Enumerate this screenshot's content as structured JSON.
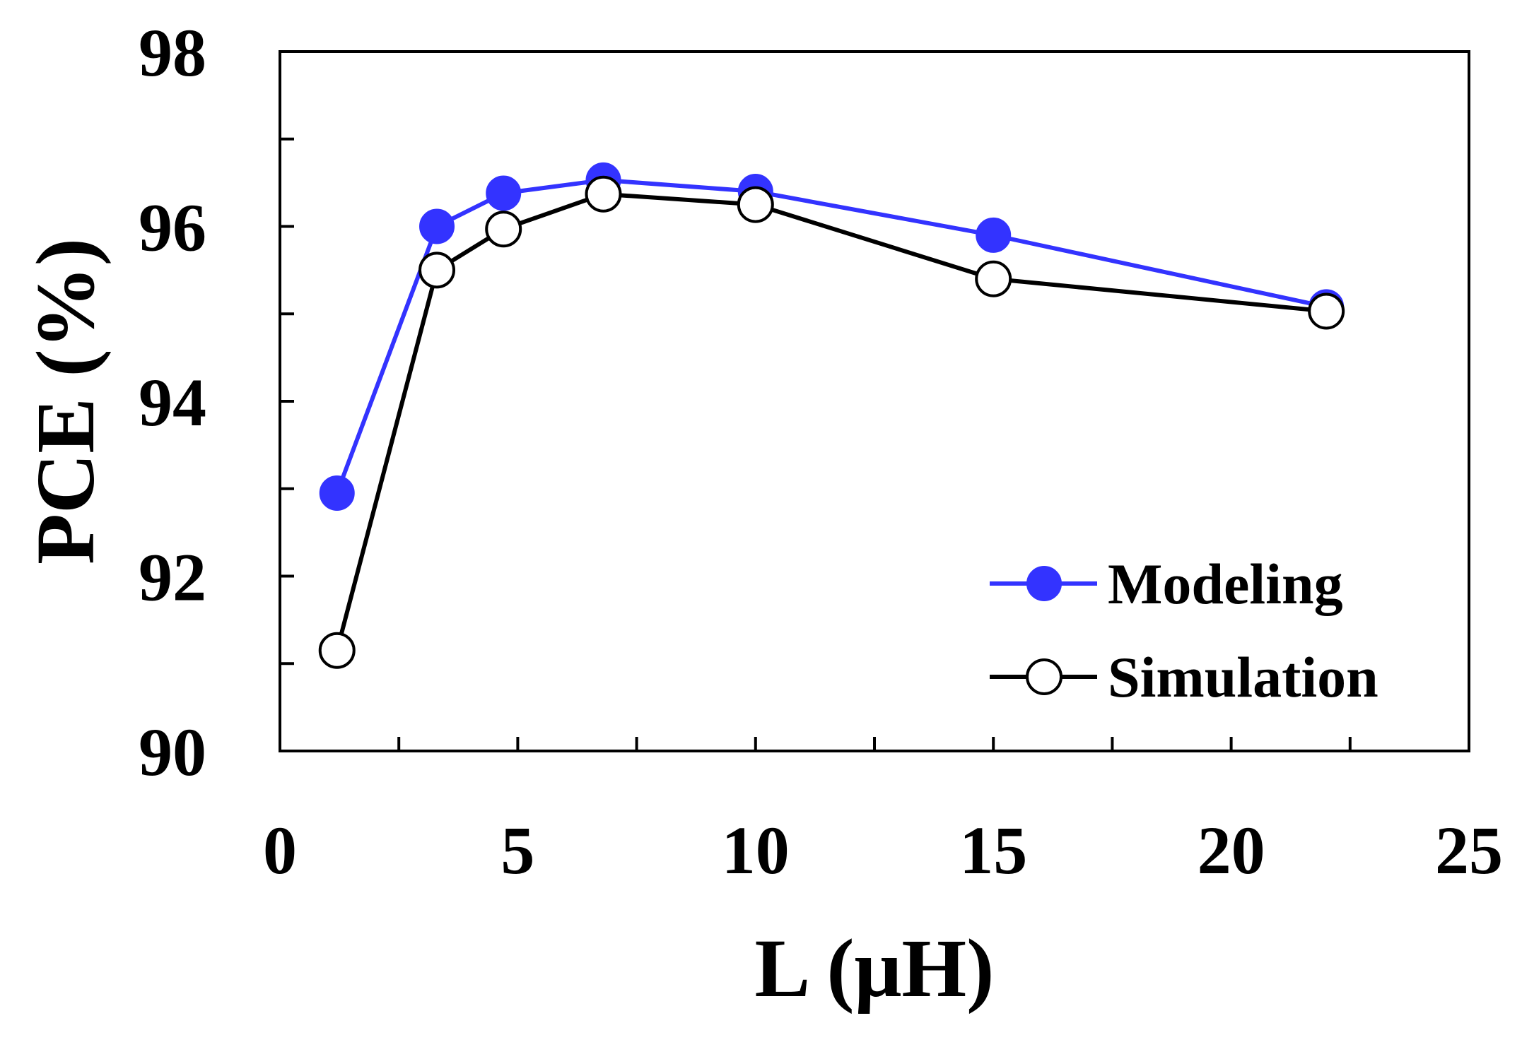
{
  "chart_data": {
    "type": "line",
    "title": "",
    "xlabel": "L (μH)",
    "ylabel": "PCE (%)",
    "xlim": [
      0,
      25
    ],
    "ylim": [
      90,
      98
    ],
    "xticks": [
      0,
      5,
      10,
      15,
      20,
      25
    ],
    "xtick_labels": [
      "0",
      "5",
      "10",
      "15",
      "20",
      "25"
    ],
    "yticks": [
      90,
      92,
      94,
      96,
      98
    ],
    "ytick_labels": [
      "90",
      "92",
      "94",
      "96",
      "98"
    ],
    "x_minor_step": 2.5,
    "y_minor_step": 1,
    "grid": false,
    "legend_position": "bottom-right",
    "series": [
      {
        "name": "Modeling",
        "color": "#3333ff",
        "marker": "filled-circle",
        "x": [
          1.2,
          3.3,
          4.7,
          6.8,
          10,
          15,
          22
        ],
        "y": [
          92.95,
          96.0,
          96.38,
          96.53,
          96.4,
          95.9,
          95.08
        ]
      },
      {
        "name": "Simulation",
        "color": "#000000",
        "marker": "open-circle",
        "x": [
          1.2,
          3.3,
          4.7,
          6.8,
          10,
          15,
          22
        ],
        "y": [
          91.15,
          95.5,
          95.97,
          96.37,
          96.25,
          95.4,
          95.03
        ]
      }
    ]
  }
}
